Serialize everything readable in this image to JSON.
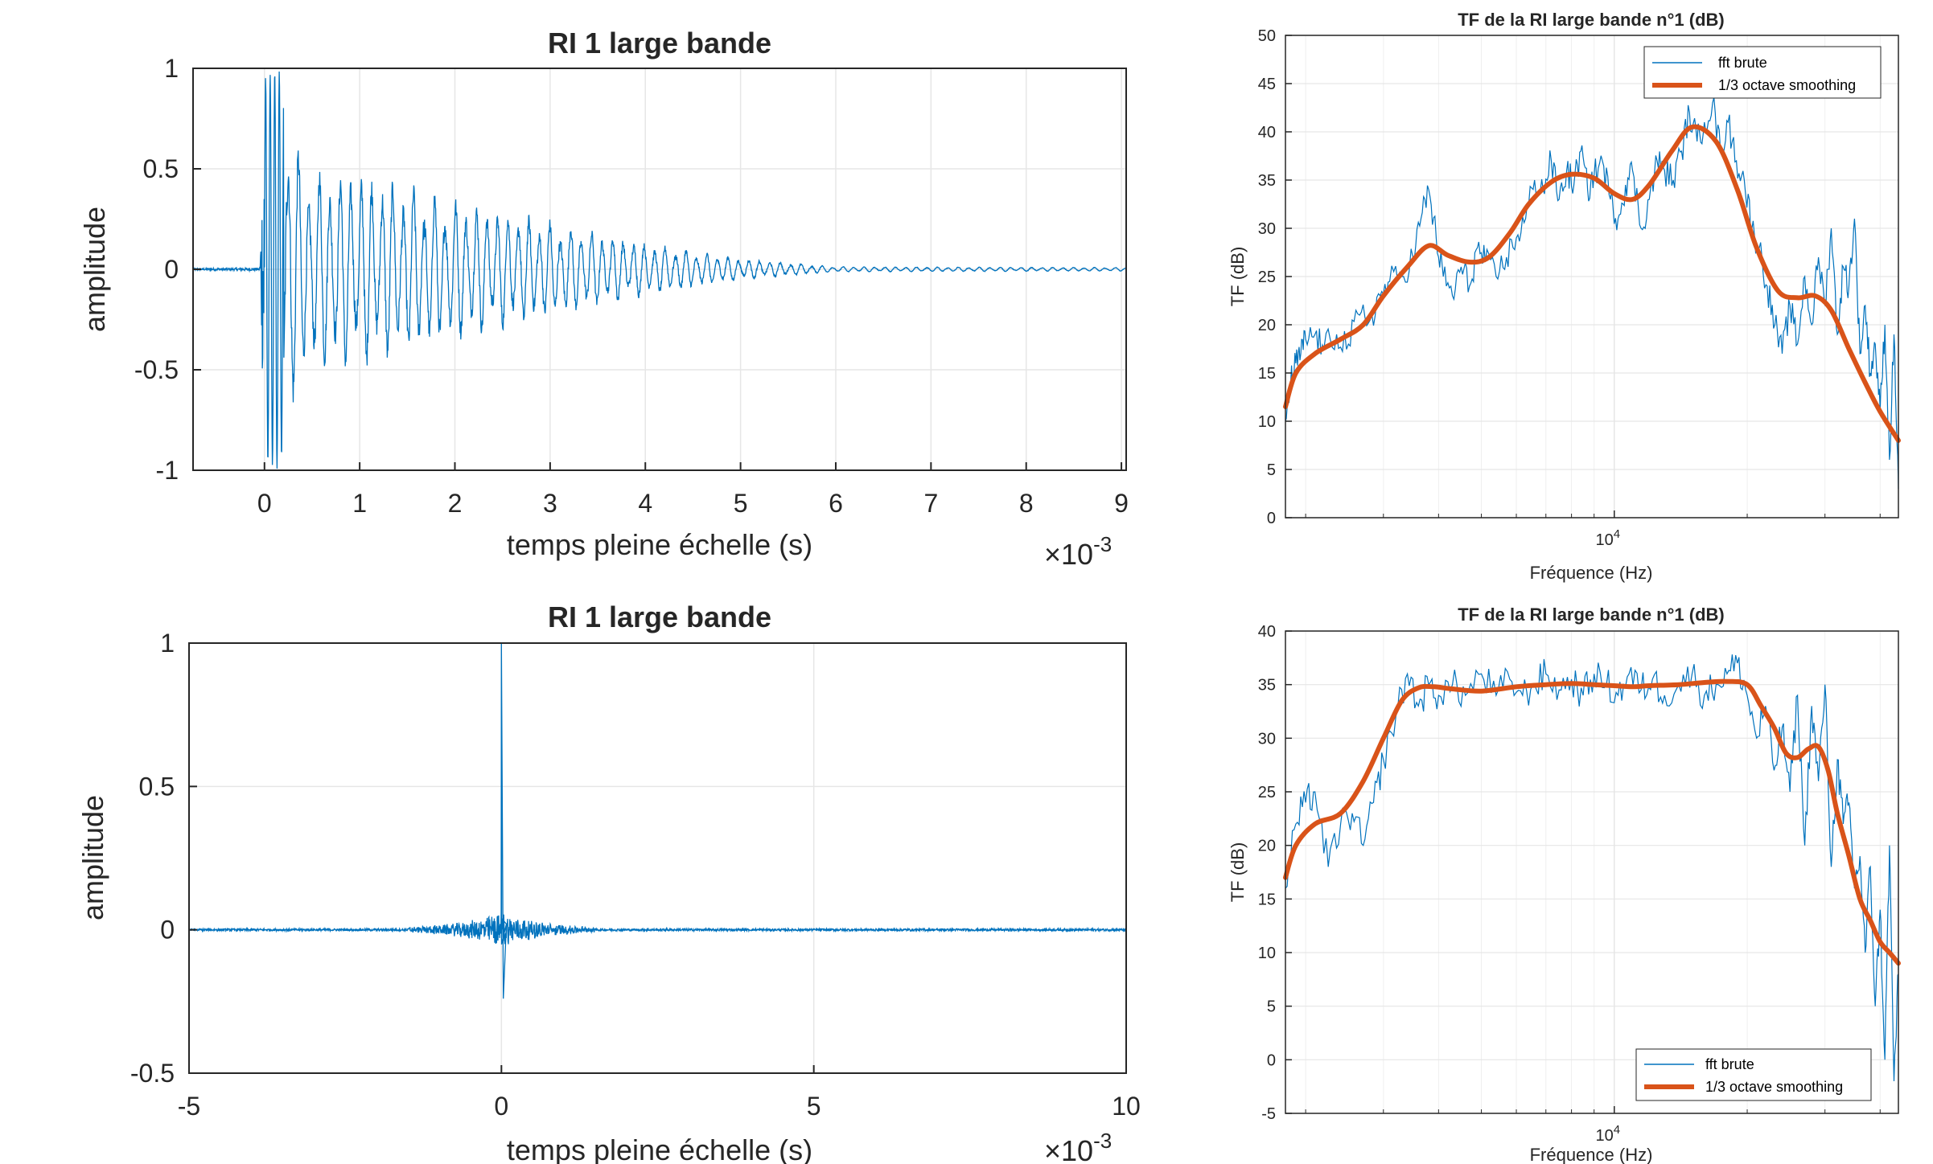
{
  "colors": {
    "raw": "#0072BD",
    "smooth": "#D95319",
    "grid": "#e6e6e6",
    "axis": "#262626"
  },
  "chart_data": [
    {
      "id": "ri-top",
      "type": "line",
      "title": "RI 1 large bande",
      "xlabel": "temps pleine échelle (s)",
      "ylabel": "amplitude",
      "exponent_base": "×10",
      "exponent_power": "-3",
      "xlim": [
        -0.75,
        9.05
      ],
      "ylim": [
        -1,
        1
      ],
      "xticks": [
        0,
        1,
        2,
        3,
        4,
        5,
        6,
        7,
        8,
        9
      ],
      "xtick_labels": [
        "0",
        "1",
        "2",
        "3",
        "4",
        "5",
        "6",
        "7",
        "8",
        "9"
      ],
      "yticks": [
        -1,
        -0.5,
        0,
        0.5,
        1
      ],
      "ytick_labels": [
        "-1",
        "-0.5",
        "0",
        "0.5",
        "1"
      ],
      "grid": true,
      "series": [
        {
          "signal": "decaying-oscillation",
          "onset": 0,
          "envelope": [
            [
              -0.75,
              0.005
            ],
            [
              -0.05,
              0.008
            ],
            [
              0,
              0.95
            ],
            [
              0.15,
              1.0
            ],
            [
              0.4,
              0.45
            ],
            [
              1.0,
              0.45
            ],
            [
              2.0,
              0.32
            ],
            [
              3.0,
              0.22
            ],
            [
              4.0,
              0.12
            ],
            [
              5.0,
              0.05
            ],
            [
              6.0,
              0.012
            ],
            [
              9.05,
              0.008
            ]
          ],
          "period": 0.11
        }
      ]
    },
    {
      "id": "ri-bottom",
      "type": "line",
      "title": "RI 1 large bande",
      "xlabel": "temps pleine échelle (s)",
      "ylabel": "amplitude",
      "exponent_base": "×10",
      "exponent_power": "-3",
      "xlim": [
        -5,
        10
      ],
      "ylim": [
        -0.5,
        1
      ],
      "xticks": [
        -5,
        0,
        5,
        10
      ],
      "xtick_labels": [
        "-5",
        "0",
        "5",
        "10"
      ],
      "yticks": [
        -0.5,
        0,
        0.5,
        1
      ],
      "ytick_labels": [
        "-0.5",
        "0",
        "0.5",
        "1"
      ],
      "grid": true,
      "series": [
        {
          "signal": "impulse",
          "peak_x": 0,
          "peak_y": 1,
          "min_y": -0.24,
          "ripple_range": [
            -1.5,
            1.5
          ],
          "ripple_amp": 0.06
        }
      ]
    },
    {
      "id": "tf-top",
      "type": "line",
      "title": "TF de la RI large bande n°1 (dB)",
      "xlabel": "Fréquence (Hz)",
      "ylabel": "TF (dB)",
      "xscale": "log",
      "xlim": [
        1800,
        44000
      ],
      "ylim": [
        0,
        50
      ],
      "yticks": [
        0,
        5,
        10,
        15,
        20,
        25,
        30,
        35,
        40,
        45,
        50
      ],
      "ytick_labels": [
        "0",
        "5",
        "10",
        "15",
        "20",
        "25",
        "30",
        "35",
        "40",
        "45",
        "50"
      ],
      "xtick_major": 10000,
      "xtick_major_base": "10",
      "xtick_major_power": "4",
      "grid": true,
      "legend": {
        "position": "top-right",
        "entries": [
          "fft brute",
          "1/3 octave smoothing"
        ]
      },
      "series": [
        {
          "name": "1/3 octave smoothing",
          "x": [
            1800,
            1900,
            2100,
            2400,
            2700,
            3000,
            3400,
            3800,
            4200,
            4700,
            5200,
            5800,
            6400,
            7200,
            8000,
            9000,
            10000,
            11000,
            12000,
            13500,
            15000,
            17000,
            19000,
            21000,
            23500,
            26000,
            28500,
            31000,
            34000,
            37000,
            40000,
            44000
          ],
          "y": [
            11.5,
            15,
            17,
            18.5,
            20,
            23,
            26,
            28.2,
            27.2,
            26.5,
            27,
            29.5,
            32.5,
            34.8,
            35.6,
            35.2,
            33.6,
            33,
            34.5,
            38,
            40.5,
            39,
            34,
            28,
            23.5,
            22.8,
            23,
            21.5,
            17.5,
            14,
            11,
            8
          ]
        },
        {
          "name": "fft brute",
          "x": [
            1800,
            1850,
            1900,
            1950,
            2000,
            2100,
            2200,
            2350,
            2500,
            2650,
            2800,
            2950,
            3100,
            3300,
            3500,
            3650,
            3800,
            3950,
            4100,
            4300,
            4500,
            4700,
            4900,
            5100,
            5400,
            5700,
            6000,
            6300,
            6600,
            6900,
            7200,
            7500,
            7800,
            8100,
            8400,
            8700,
            9000,
            9400,
            9800,
            10200,
            10600,
            11000,
            11500,
            12000,
            12500,
            13000,
            13600,
            14200,
            14800,
            15400,
            16000,
            16700,
            17400,
            18100,
            18900,
            19700,
            20500,
            21300,
            22200,
            23100,
            24000,
            25000,
            26000,
            27000,
            28000,
            29000,
            30000,
            31000,
            32000,
            33000,
            34000,
            35000,
            36000,
            37000,
            38000,
            39000,
            40000,
            41000,
            42000,
            43000,
            44000
          ],
          "y": [
            10,
            14,
            16,
            17,
            18.5,
            19,
            17.5,
            19,
            18,
            21,
            20.5,
            23,
            24.5,
            25,
            27,
            31,
            34,
            29,
            25,
            23,
            26,
            24,
            28,
            26.5,
            25,
            27,
            29,
            31,
            35,
            34,
            37,
            33,
            36,
            34.5,
            38,
            34,
            35.5,
            37,
            33,
            31,
            34.5,
            36,
            30,
            33,
            37,
            36,
            35,
            38,
            42,
            39,
            41,
            43,
            38,
            41,
            37,
            35,
            30,
            28,
            24,
            20,
            17,
            22,
            18,
            25,
            20,
            27,
            22,
            30,
            19,
            26,
            24,
            31,
            17,
            22,
            15,
            18,
            11,
            20,
            6,
            19,
            3
          ]
        }
      ]
    },
    {
      "id": "tf-bottom",
      "type": "line",
      "title": "TF de la RI large bande n°1 (dB)",
      "xlabel": "Fréquence (Hz)",
      "ylabel": "TF (dB)",
      "xscale": "log",
      "xlim": [
        1800,
        44000
      ],
      "ylim": [
        -5,
        40
      ],
      "yticks": [
        -5,
        0,
        5,
        10,
        15,
        20,
        25,
        30,
        35,
        40
      ],
      "ytick_labels": [
        "-5",
        "0",
        "5",
        "10",
        "15",
        "20",
        "25",
        "30",
        "35",
        "40"
      ],
      "xtick_major": 10000,
      "xtick_major_base": "10",
      "xtick_major_power": "4",
      "grid": true,
      "legend": {
        "position": "bottom-right",
        "entries": [
          "fft brute",
          "1/3 octave smoothing"
        ]
      },
      "series": [
        {
          "name": "1/3 octave smoothing",
          "x": [
            1800,
            1900,
            2100,
            2400,
            2700,
            3000,
            3300,
            3600,
            3900,
            4300,
            5000,
            6000,
            7000,
            8000,
            9000,
            10000,
            11000,
            12000,
            14000,
            16000,
            18000,
            20000,
            21500,
            23000,
            24500,
            26000,
            27500,
            29000,
            30500,
            32000,
            34000,
            36000,
            38000,
            40000,
            42000,
            44000
          ],
          "y": [
            17,
            20,
            22,
            23,
            26,
            30,
            33.5,
            34.7,
            34.8,
            34.6,
            34.4,
            34.8,
            35,
            35.1,
            35,
            34.9,
            34.8,
            34.9,
            35,
            35.2,
            35.3,
            35,
            33,
            31,
            28.6,
            28.2,
            29,
            29.2,
            27,
            23,
            19,
            15,
            13,
            11,
            10,
            9
          ]
        },
        {
          "name": "fft brute",
          "x": [
            1800,
            1900,
            2000,
            2100,
            2250,
            2400,
            2550,
            2700,
            2850,
            3000,
            3200,
            3400,
            3600,
            3800,
            4000,
            4300,
            4600,
            5000,
            5400,
            5800,
            6200,
            6600,
            7000,
            7500,
            8000,
            8500,
            9000,
            9600,
            10200,
            10800,
            11500,
            12200,
            13000,
            14000,
            15000,
            16000,
            17000,
            18000,
            19000,
            20000,
            21000,
            22000,
            23000,
            24000,
            25000,
            26000,
            27000,
            28000,
            29000,
            30000,
            31000,
            32000,
            33000,
            34000,
            35000,
            36000,
            37000,
            38000,
            39000,
            40000,
            41000,
            42000,
            43000,
            44000
          ],
          "y": [
            16,
            22,
            24,
            25,
            18,
            22,
            23,
            20,
            24,
            28,
            32,
            36,
            33,
            35,
            34,
            35,
            34,
            36,
            34,
            35.5,
            34,
            35,
            36,
            34.5,
            35.5,
            34,
            36,
            35,
            34,
            36,
            34.5,
            35.5,
            34,
            35,
            36,
            34,
            35,
            36,
            37,
            34,
            30,
            33,
            27,
            31,
            25,
            34,
            20,
            33,
            26,
            35,
            18,
            28,
            22,
            24,
            16,
            19,
            10,
            18,
            5,
            14,
            0,
            20,
            -2,
            8
          ]
        }
      ]
    }
  ]
}
